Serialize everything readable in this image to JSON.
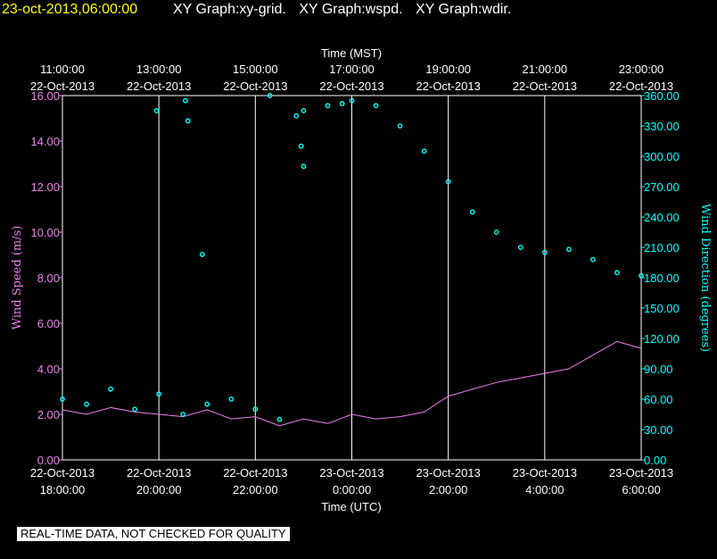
{
  "header": {
    "datetime": "23-oct-2013,06:00:00",
    "graph_titles": [
      "XY Graph:xy-grid.",
      "XY Graph:wspd.",
      "XY Graph:wdir."
    ]
  },
  "notice": "REAL-TIME DATA, NOT CHECKED FOR QUALITY",
  "colors": {
    "speed": "#ee82ee",
    "direction": "#00ffff",
    "grid": "#ffffff",
    "date": "#ffff00"
  },
  "chart_data": {
    "type": "line",
    "top_axis": {
      "label": "Time (MST)",
      "ticks": [
        {
          "time": "11:00:00",
          "date": "22-Oct-2013"
        },
        {
          "time": "13:00:00",
          "date": "22-Oct-2013"
        },
        {
          "time": "15:00:00",
          "date": "22-Oct-2013"
        },
        {
          "time": "17:00:00",
          "date": "22-Oct-2013"
        },
        {
          "time": "19:00:00",
          "date": "22-Oct-2013"
        },
        {
          "time": "21:00:00",
          "date": "22-Oct-2013"
        },
        {
          "time": "23:00:00",
          "date": "22-Oct-2013"
        }
      ]
    },
    "bottom_axis": {
      "label": "Time (UTC)",
      "ticks": [
        {
          "date": "22-Oct-2013",
          "time": "18:00:00"
        },
        {
          "date": "22-Oct-2013",
          "time": "20:00:00"
        },
        {
          "date": "22-Oct-2013",
          "time": "22:00:00"
        },
        {
          "date": "23-Oct-2013",
          "time": "0:00:00"
        },
        {
          "date": "23-Oct-2013",
          "time": "2:00:00"
        },
        {
          "date": "23-Oct-2013",
          "time": "4:00:00"
        },
        {
          "date": "23-Oct-2013",
          "time": "6:00:00"
        }
      ],
      "range_hours": [
        0,
        12
      ]
    },
    "left_axis": {
      "label": "Wind Speed (m/s)",
      "ylim": [
        0,
        16
      ],
      "ticks": [
        "0.00",
        "2.00",
        "4.00",
        "6.00",
        "8.00",
        "10.00",
        "12.00",
        "14.00",
        "16.00"
      ]
    },
    "right_axis": {
      "label": "Wind Direction (degrees)",
      "ylim": [
        0,
        360
      ],
      "ticks": [
        "0.00",
        "30.00",
        "60.00",
        "90.00",
        "120.00",
        "150.00",
        "180.00",
        "210.00",
        "240.00",
        "270.00",
        "300.00",
        "330.00",
        "360.00"
      ]
    },
    "series": [
      {
        "name": "wspd",
        "type": "line",
        "axis": "left",
        "x_hours": [
          0,
          0.5,
          1,
          1.5,
          2,
          2.5,
          3,
          3.5,
          4,
          4.5,
          5,
          5.5,
          6,
          6.5,
          7,
          7.5,
          8,
          8.5,
          9,
          9.5,
          10,
          10.5,
          11,
          11.5,
          12
        ],
        "values": [
          2.2,
          2.0,
          2.3,
          2.1,
          2.0,
          1.9,
          2.2,
          1.8,
          1.9,
          1.5,
          1.8,
          1.6,
          2.0,
          1.8,
          1.9,
          2.1,
          2.8,
          3.1,
          3.4,
          3.6,
          3.8,
          4.0,
          4.6,
          5.2,
          4.9
        ]
      },
      {
        "name": "wdir",
        "type": "scatter",
        "axis": "right",
        "x_hours": [
          0,
          0.5,
          1,
          1.5,
          2,
          2.5,
          3,
          3.5,
          4,
          4.5,
          5,
          5.5,
          5.8,
          6,
          6.5,
          7,
          7.5,
          8,
          8.5,
          9,
          9.5,
          10,
          10.5,
          11,
          11.5,
          12
        ],
        "values": [
          60,
          55,
          70,
          50,
          65,
          45,
          55,
          60,
          50,
          40,
          345,
          350,
          352,
          355,
          350,
          330,
          305,
          275,
          245,
          225,
          210,
          205,
          208,
          198,
          185,
          182
        ],
        "high_outliers": [
          [
            1.95,
            345
          ],
          [
            2.55,
            355
          ],
          [
            2.6,
            335
          ],
          [
            2.9,
            203
          ],
          [
            4.3,
            360
          ],
          [
            4.85,
            340
          ],
          [
            4.95,
            310
          ],
          [
            5.0,
            290
          ]
        ]
      }
    ]
  }
}
